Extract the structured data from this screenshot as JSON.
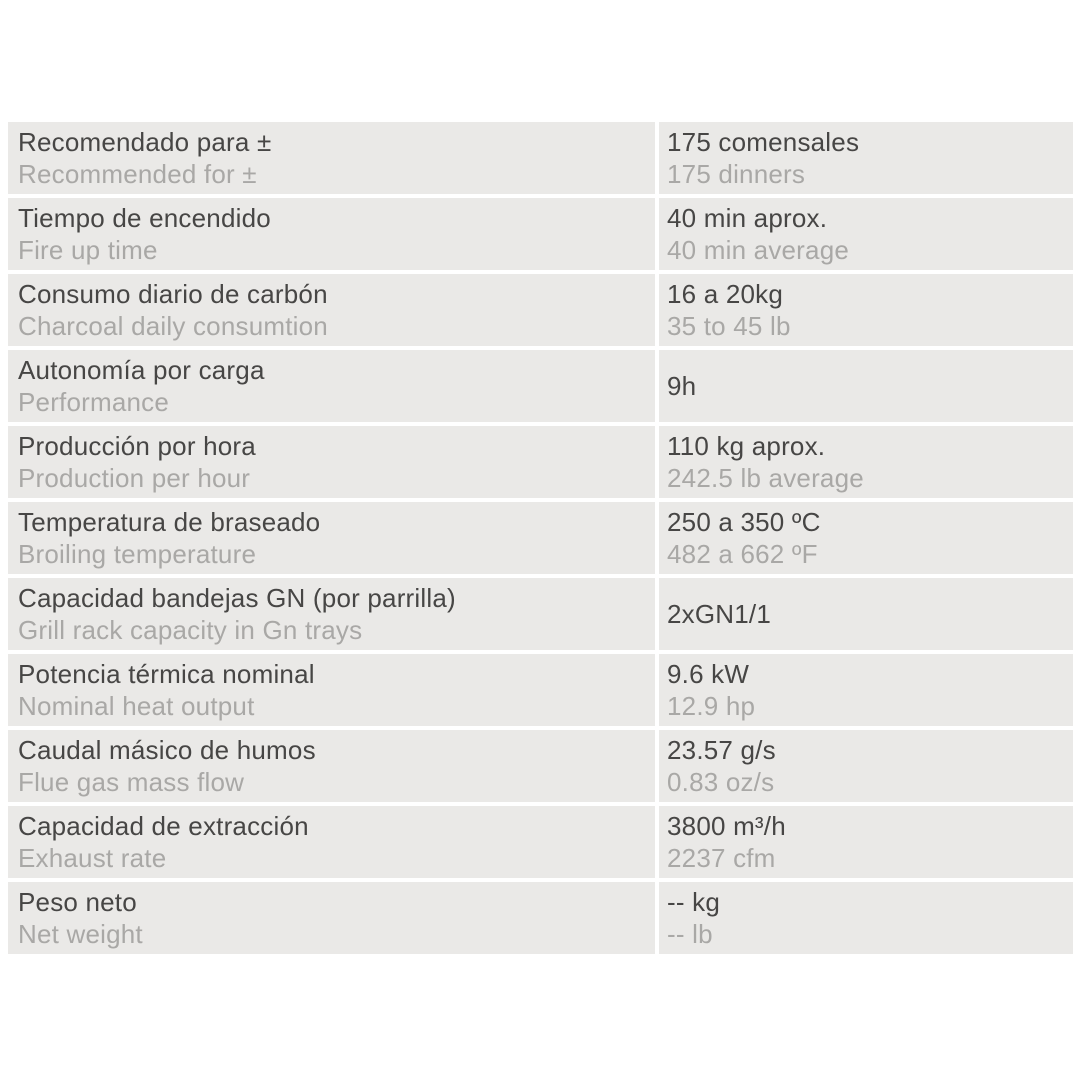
{
  "colors": {
    "page_background": "#FFFFFF",
    "row_background": "#EAE9E7",
    "primary_text": "#474645",
    "secondary_text": "#A9A8A6"
  },
  "table": {
    "description": "product-specifications-table",
    "rows": [
      {
        "label_es": "Recomendado para ±",
        "label_en": "Recommended for ±",
        "value_primary": "175 comensales",
        "value_secondary": "175 dinners"
      },
      {
        "label_es": "Tiempo de encendido",
        "label_en": "Fire up time",
        "value_primary": "40 min aprox.",
        "value_secondary": "40 min average"
      },
      {
        "label_es": "Consumo diario de carbón",
        "label_en": "Charcoal daily consumtion",
        "value_primary": "16 a 20kg",
        "value_secondary": "35 to 45 lb"
      },
      {
        "label_es": "Autonomía por carga",
        "label_en": "Performance",
        "value_primary": "9h",
        "value_secondary": ""
      },
      {
        "label_es": "Producción por hora",
        "label_en": "Production per hour",
        "value_primary": "110 kg aprox.",
        "value_secondary": "242.5 lb average"
      },
      {
        "label_es": "Temperatura de braseado",
        "label_en": "Broiling temperature",
        "value_primary": "250 a 350 ºC",
        "value_secondary": "482 a 662 ºF"
      },
      {
        "label_es": "Capacidad bandejas GN (por parrilla)",
        "label_en": "Grill rack capacity in Gn trays",
        "value_primary": "2xGN1/1",
        "value_secondary": ""
      },
      {
        "label_es": "Potencia térmica nominal",
        "label_en": "Nominal heat output",
        "value_primary": "9.6 kW",
        "value_secondary": "12.9 hp"
      },
      {
        "label_es": "Caudal másico de humos",
        "label_en": "Flue gas mass flow",
        "value_primary": "23.57 g/s",
        "value_secondary": "0.83 oz/s"
      },
      {
        "label_es": "Capacidad de extracción",
        "label_en": "Exhaust rate",
        "value_primary": "3800 m³/h",
        "value_secondary": "2237 cfm"
      },
      {
        "label_es": "Peso neto",
        "label_en": "Net weight",
        "value_primary": "-- kg",
        "value_secondary": "-- lb"
      }
    ]
  }
}
